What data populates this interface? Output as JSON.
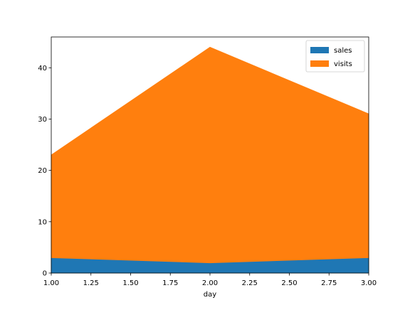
{
  "chart_data": {
    "type": "area",
    "stacked": true,
    "x": [
      1,
      2,
      3
    ],
    "series": [
      {
        "name": "sales",
        "values": [
          3,
          2,
          3
        ],
        "color": "#1f77b4"
      },
      {
        "name": "visits",
        "values": [
          20,
          42,
          28
        ],
        "color": "#ff7f0e"
      }
    ],
    "xlabel": "day",
    "ylabel": "",
    "xlim": [
      1,
      3
    ],
    "ylim": [
      0,
      46
    ],
    "xticks": [
      "1.00",
      "1.25",
      "1.50",
      "1.75",
      "2.00",
      "2.25",
      "2.50",
      "2.75",
      "3.00"
    ],
    "yticks": [
      "0",
      "10",
      "20",
      "30",
      "40"
    ],
    "grid": false,
    "legend_position": "top-right"
  }
}
